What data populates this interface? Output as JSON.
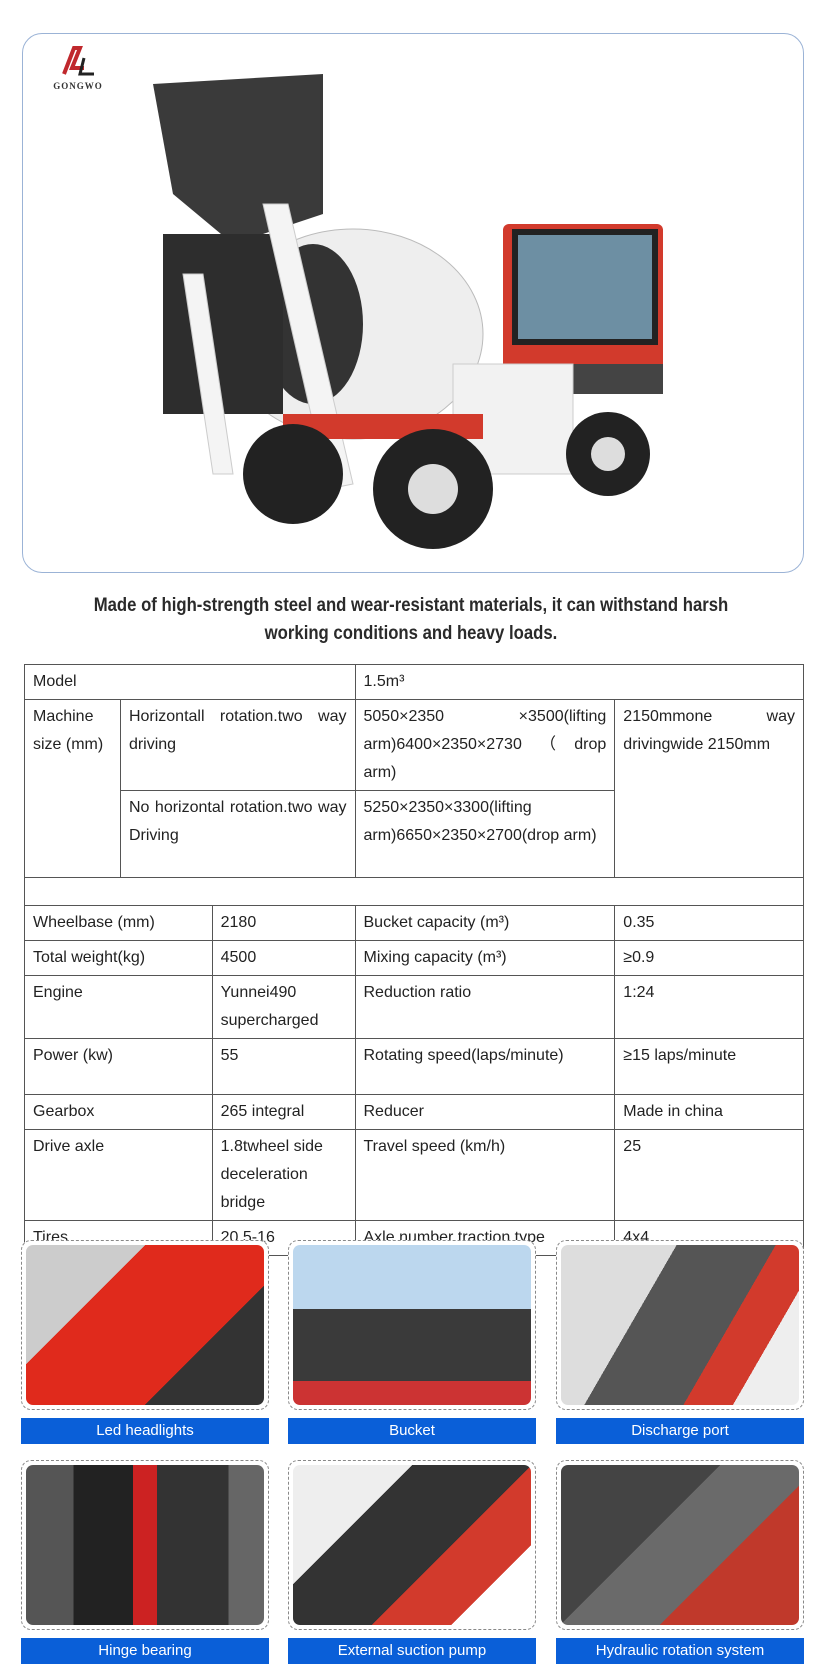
{
  "brand": {
    "logo_text": "GONGWO",
    "accent": "#c0282d"
  },
  "heading": "Made of high-strength steel and wear-resistant materials, it can withstand harsh working conditions and heavy loads.",
  "specs": {
    "model_label": "Model",
    "model_value": "1.5m³",
    "machine_size_label": "Machine size (mm)",
    "variant1_label": "Horizontall rotation.two way driving",
    "variant1_value": "5050×2350 ×3500(lifting arm)6400×2350×2730（drop arm)",
    "width_value": "2150mmone way drivingwide 2150mm",
    "variant2_label": "No horizontal rotation.two way Driving",
    "variant2_value": "5250×2350×3300(lifting arm)6650×2350×2700(drop arm)",
    "rows": [
      [
        "Wheelbase (mm)",
        "2180",
        "Bucket capacity (m³)",
        "0.35"
      ],
      [
        "Total weight(kg)",
        "4500",
        "Mixing capacity (m³)",
        "≥0.9"
      ],
      [
        "Engine",
        "Yunnei490 supercharged",
        "Reduction ratio",
        "1:24"
      ],
      [
        "Power (kw)",
        "55",
        "Rotating speed(laps/minute)",
        "≥15 laps/minute"
      ],
      [
        "Gearbox",
        "265 integral",
        "Reducer",
        "Made in china"
      ],
      [
        "Drive axle",
        "1.8twheel side deceleration bridge",
        "Travel speed (km/h)",
        "25"
      ],
      [
        "Tires",
        "20.5-16",
        "Axle number traction type",
        "4x4"
      ]
    ]
  },
  "features": [
    {
      "label": "Led headlights"
    },
    {
      "label": "Bucket"
    },
    {
      "label": "Discharge port"
    },
    {
      "label": "Hinge bearing"
    },
    {
      "label": "External suction pump"
    },
    {
      "label": "Hydraulic rotation system"
    }
  ],
  "caption_color": "#0a5fd8"
}
